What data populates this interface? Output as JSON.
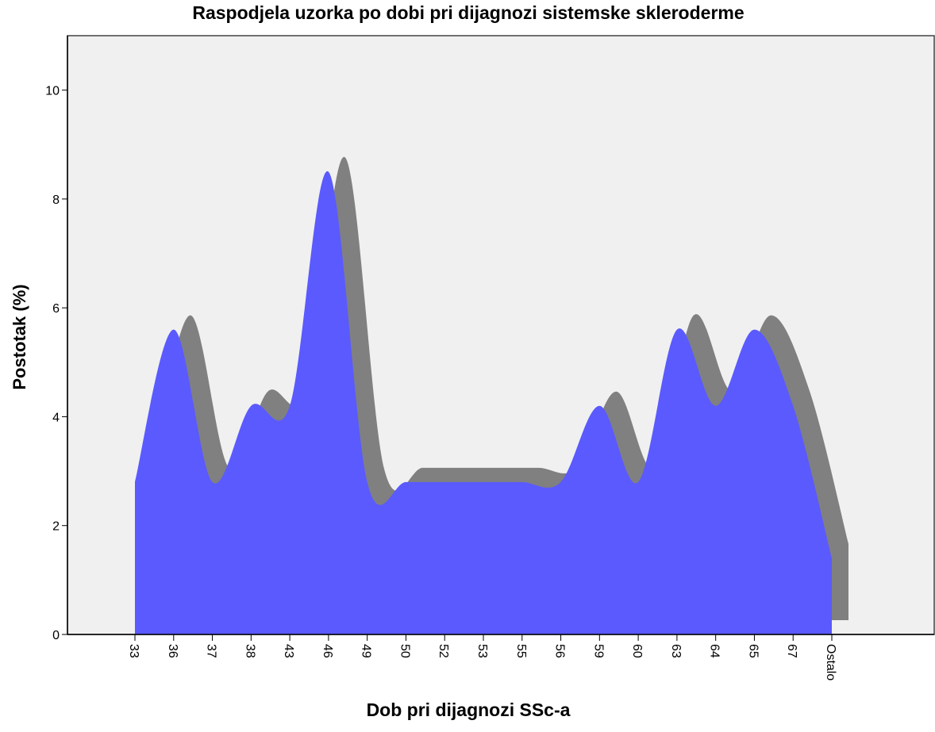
{
  "chart_data": {
    "type": "area",
    "title": "Raspodjela uzorka po dobi pri dijagnozi sistemske skleroderme",
    "x_label": "Dob pri dijagnozi SSc-a",
    "y_label": "Postotak (%)",
    "categories": [
      "33",
      "36",
      "37",
      "38",
      "43",
      "46",
      "49",
      "50",
      "52",
      "53",
      "55",
      "56",
      "59",
      "60",
      "63",
      "64",
      "65",
      "67",
      "Ostalo"
    ],
    "values": [
      2.8,
      5.6,
      2.8,
      4.2,
      4.2,
      8.5,
      2.8,
      2.8,
      2.8,
      2.8,
      2.8,
      2.8,
      4.2,
      2.8,
      5.6,
      4.2,
      5.6,
      4.2,
      1.4
    ],
    "color": "#5a5aff",
    "shadow_color": "#808080",
    "ylim": [
      0,
      11
    ],
    "yticks": [
      0,
      2,
      4,
      6,
      8,
      10
    ]
  }
}
